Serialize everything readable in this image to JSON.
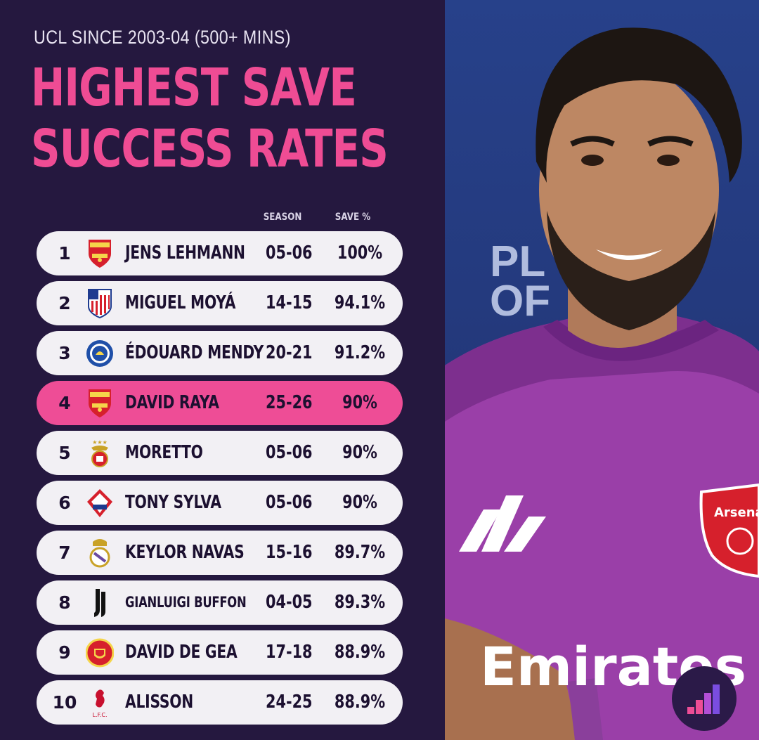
{
  "header": {
    "subtitle": "UCL SINCE 2003-04 (500+ MINS)",
    "title_line1": "HIGHEST SAVE",
    "title_line2": "SUCCESS RATES"
  },
  "columns": {
    "season": "SEASON",
    "save": "SAVE %"
  },
  "players": [
    {
      "rank": "1",
      "name": "JENS LEHMANN",
      "season": "05-06",
      "save": "100%",
      "club_icon": "arsenal-crest"
    },
    {
      "rank": "2",
      "name": "MIGUEL MOYÁ",
      "season": "14-15",
      "save": "94.1%",
      "club_icon": "atletico-crest"
    },
    {
      "rank": "3",
      "name": "ÉDOUARD MENDY",
      "season": "20-21",
      "save": "91.2%",
      "club_icon": "chelsea-crest"
    },
    {
      "rank": "4",
      "name": "DAVID RAYA",
      "season": "25-26",
      "save": "90%",
      "club_icon": "arsenal-crest"
    },
    {
      "rank": "5",
      "name": "MORETTO",
      "season": "05-06",
      "save": "90%",
      "club_icon": "benfica-crest"
    },
    {
      "rank": "6",
      "name": "TONY SYLVA",
      "season": "05-06",
      "save": "90%",
      "club_icon": "lille-crest"
    },
    {
      "rank": "7",
      "name": "KEYLOR NAVAS",
      "season": "15-16",
      "save": "89.7%",
      "club_icon": "real-madrid-crest"
    },
    {
      "rank": "8",
      "name": "GIANLUIGI BUFFON",
      "season": "04-05",
      "save": "89.3%",
      "club_icon": "juventus-crest"
    },
    {
      "rank": "9",
      "name": "DAVID DE GEA",
      "season": "17-18",
      "save": "88.9%",
      "club_icon": "man-utd-crest"
    },
    {
      "rank": "10",
      "name": "ALISSON",
      "season": "24-25",
      "save": "88.9%",
      "club_icon": "liverpool-crest"
    }
  ],
  "photo": {
    "bg_text_line1": "PL",
    "bg_text_line2": "OF",
    "shirt_sponsor": "Emirates",
    "crest_text": "Arsenal"
  },
  "colors": {
    "background": "#25183f",
    "accent_pink": "#ef4c94",
    "row_bg": "#f2f0f4",
    "highlight_row": "#ee4d96"
  }
}
